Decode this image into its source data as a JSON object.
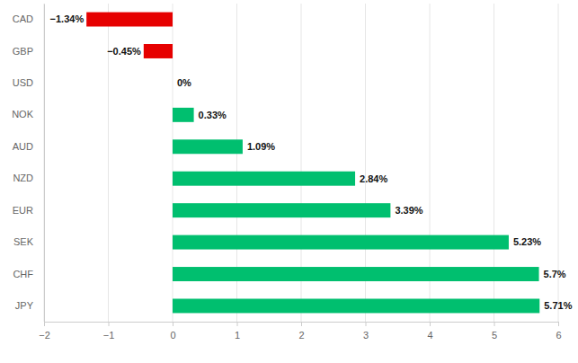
{
  "chart_data": {
    "type": "bar",
    "orientation": "horizontal",
    "categories": [
      "CAD",
      "GBP",
      "USD",
      "NOK",
      "AUD",
      "NZD",
      "EUR",
      "SEK",
      "CHF",
      "JPY"
    ],
    "values": [
      -1.34,
      -0.45,
      0,
      0.33,
      1.09,
      2.84,
      3.39,
      5.23,
      5.7,
      5.71
    ],
    "value_labels": [
      "−1.34%",
      "−0.45%",
      "0%",
      "0.33%",
      "1.09%",
      "2.84%",
      "3.39%",
      "5.23%",
      "5.7%",
      "5.71%"
    ],
    "colors": [
      "#e60000",
      "#e60000",
      "#00bf6f",
      "#00bf6f",
      "#00bf6f",
      "#00bf6f",
      "#00bf6f",
      "#00bf6f",
      "#00bf6f",
      "#00bf6f"
    ],
    "xlim": [
      -2,
      6
    ],
    "xticks": [
      {
        "value": -2,
        "label": "−2"
      },
      {
        "value": -1,
        "label": "−1"
      },
      0,
      1,
      2,
      3,
      4,
      5,
      6
    ],
    "grid": true,
    "data_labels": true
  }
}
